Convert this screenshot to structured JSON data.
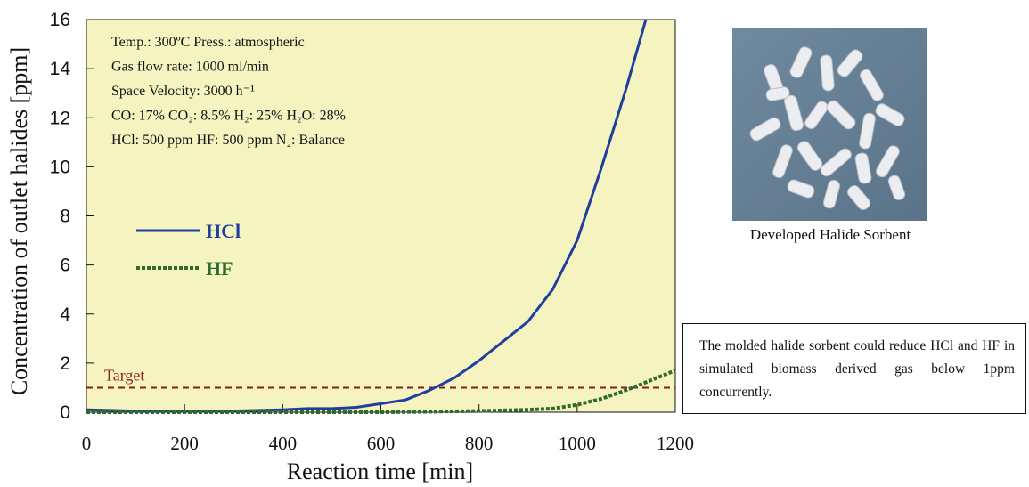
{
  "chart_data": {
    "type": "line",
    "xlabel": "Reaction time [min]",
    "ylabel": "Concentration of outlet halides [ppm]",
    "xlim": [
      0,
      1200
    ],
    "ylim": [
      0,
      16
    ],
    "x_ticks": [
      "0",
      "200",
      "400",
      "600",
      "800",
      "1000",
      "1200"
    ],
    "y_ticks": [
      "0",
      "2",
      "4",
      "6",
      "8",
      "10",
      "12",
      "14",
      "16"
    ],
    "background": "#f5f4c0",
    "series": [
      {
        "name": "HCl",
        "color": "#1f3f9e",
        "style": "solid",
        "x": [
          0,
          100,
          200,
          300,
          400,
          450,
          500,
          550,
          600,
          650,
          700,
          750,
          800,
          850,
          900,
          950,
          1000,
          1050,
          1100,
          1140
        ],
        "y": [
          0.1,
          0.05,
          0.05,
          0.05,
          0.1,
          0.15,
          0.15,
          0.2,
          0.35,
          0.5,
          0.9,
          1.4,
          2.1,
          2.9,
          3.7,
          5.0,
          7.0,
          10.0,
          13.2,
          16.0
        ]
      },
      {
        "name": "HF",
        "color": "#2e6b2e",
        "style": "dotted",
        "x": [
          0,
          100,
          200,
          300,
          400,
          500,
          600,
          700,
          800,
          900,
          950,
          1000,
          1050,
          1100,
          1150,
          1200
        ],
        "y": [
          0,
          0,
          0,
          0,
          0,
          0,
          0,
          0.02,
          0.05,
          0.1,
          0.15,
          0.3,
          0.55,
          0.9,
          1.3,
          1.7
        ]
      }
    ],
    "target": {
      "label": "Target",
      "value": 1.0,
      "color": "#8b1a1a"
    },
    "legend": {
      "placement": "left",
      "items": [
        "HCl",
        "HF"
      ]
    },
    "conditions": [
      "Temp.: 300ºC Press.: atmospheric",
      "Gas flow rate: 1000 ml/min",
      "Space Velocity: 3000 h⁻¹",
      "CO: 17% CO₂: 8.5% H₂: 25% H₂O: 28%",
      "HCl: 500 ppm HF: 500 ppm N₂: Balance"
    ]
  },
  "photo": {
    "caption": "Developed Halide Sorbent"
  },
  "note": {
    "text": "The molded halide sorbent could reduce HCl and HF in simulated biomass derived gas below 1ppm concurrently."
  }
}
